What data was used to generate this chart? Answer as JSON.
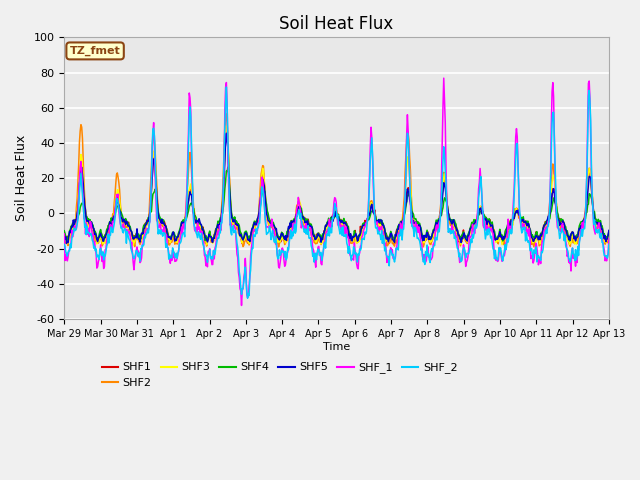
{
  "title": "Soil Heat Flux",
  "xlabel": "Time",
  "ylabel": "Soil Heat Flux",
  "ylim": [
    -60,
    100
  ],
  "plot_bg_color": "#e8e8e8",
  "fig_bg_color": "#f0f0f0",
  "annotation_text": "TZ_fmet",
  "annotation_bg": "#ffffcc",
  "annotation_border": "#8B4513",
  "series": [
    "SHF1",
    "SHF2",
    "SHF3",
    "SHF4",
    "SHF5",
    "SHF_1",
    "SHF_2"
  ],
  "colors": {
    "SHF1": "#dd0000",
    "SHF2": "#ff8800",
    "SHF3": "#ffff00",
    "SHF4": "#00bb00",
    "SHF5": "#0000cc",
    "SHF_1": "#ff00ff",
    "SHF_2": "#00ccff"
  },
  "x_tick_labels": [
    "Mar 29",
    "Mar 30",
    "Mar 31",
    "Apr 1",
    "Apr 2",
    "Apr 3",
    "Apr 4",
    "Apr 5",
    "Apr 6",
    "Apr 7",
    "Apr 8",
    "Apr 9",
    "Apr 10",
    "Apr 11",
    "Apr 12",
    "Apr 13"
  ],
  "yticks": [
    -60,
    -40,
    -20,
    0,
    20,
    40,
    60,
    80,
    100
  ],
  "gridline_color": "#ffffff",
  "title_fontsize": 12,
  "legend_labels": [
    "SHF1",
    "SHF2",
    "SHF3",
    "SHF4",
    "SHF5",
    "SHF_1",
    "SHF_2"
  ],
  "n_days": 15,
  "day_amplitudes_shf2": [
    58,
    30,
    52,
    39,
    65,
    34,
    14,
    8,
    14,
    55,
    30,
    10,
    10,
    34,
    33
  ],
  "day_amplitudes_shf1": [
    32,
    15,
    38,
    18,
    54,
    27,
    10,
    6,
    10,
    20,
    25,
    8,
    8,
    20,
    30
  ],
  "day_amplitudes_shf3": [
    38,
    20,
    40,
    22,
    56,
    30,
    12,
    7,
    12,
    38,
    28,
    9,
    9,
    28,
    32
  ],
  "day_amplitudes_shf4": [
    10,
    8,
    18,
    10,
    30,
    18,
    6,
    3,
    5,
    15,
    12,
    5,
    5,
    12,
    15
  ],
  "day_amplitudes_shf5": [
    30,
    12,
    35,
    16,
    50,
    25,
    9,
    5,
    9,
    18,
    22,
    7,
    7,
    18,
    27
  ],
  "day_amplitudes_shf_1": [
    38,
    20,
    58,
    78,
    84,
    27,
    15,
    15,
    55,
    60,
    83,
    32,
    57,
    83,
    86
  ],
  "day_amplitudes_shf_2": [
    30,
    18,
    60,
    72,
    80,
    24,
    12,
    14,
    50,
    55,
    46,
    28,
    50,
    70,
    80
  ]
}
